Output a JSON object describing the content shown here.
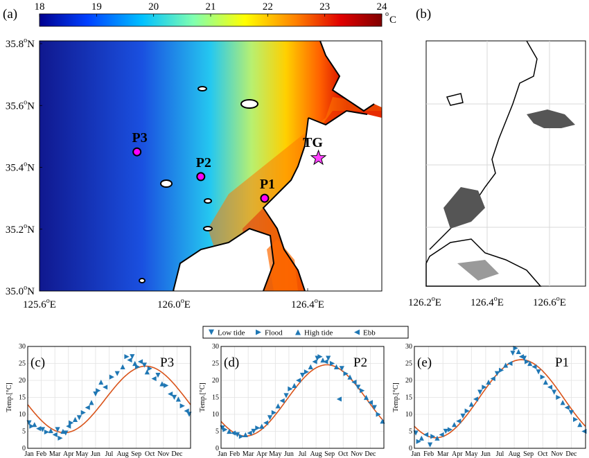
{
  "figure": {
    "panel_labels": {
      "a": "(a)",
      "b": "(b)",
      "c": "(c)",
      "d": "(d)",
      "e": "(e)"
    },
    "colorbar": {
      "ticks": [
        "18",
        "19",
        "20",
        "21",
        "22",
        "23",
        "24"
      ],
      "unit_o": "o",
      "unit_c": "C",
      "colors": [
        "#00008f",
        "#0040ff",
        "#00c0ff",
        "#80ffb0",
        "#ffff00",
        "#ff8000",
        "#e00000",
        "#800000"
      ]
    },
    "map_a": {
      "lat_ticks": [
        "35.8",
        "35.6",
        "35.4",
        "35.2",
        "35.0"
      ],
      "lat_suffix": "N",
      "lon_ticks": [
        "125.6",
        "126.0",
        "126.4"
      ],
      "lon_suffix": "E",
      "deg": "o",
      "points": [
        {
          "name": "P3",
          "lon": 125.89,
          "lat": 35.45
        },
        {
          "name": "P2",
          "lon": 126.08,
          "lat": 35.37
        },
        {
          "name": "P1",
          "lon": 126.27,
          "lat": 35.3
        },
        {
          "name": "TG",
          "lon": 126.43,
          "lat": 35.43
        }
      ]
    },
    "map_b": {
      "lon_ticks": [
        "126.2",
        "126.4",
        "126.6"
      ],
      "lon_suffix": "E",
      "deg": "o"
    },
    "legend": [
      "Low tide",
      "Flood",
      "High tide",
      "Ebb"
    ],
    "series_color": "#1f77b4",
    "fit_color": "#d95319"
  },
  "chart_data": [
    {
      "type": "scatter",
      "panel": "(c)",
      "station": "P3",
      "ylabel": "Temp.[°C]",
      "ylim": [
        0,
        30
      ],
      "yticks": [
        0,
        5,
        10,
        15,
        20,
        25,
        30
      ],
      "months": [
        "Jan",
        "Feb",
        "Mar",
        "Apr",
        "May",
        "Jun",
        "Jul",
        "Aug",
        "Sep",
        "Oct",
        "Nov",
        "Dec"
      ],
      "fit": {
        "mean": 14.4,
        "amp": 9.8,
        "peak_month": 8.7
      },
      "points": [
        [
          0.1,
          7.5,
          0
        ],
        [
          0.3,
          6.5,
          1
        ],
        [
          0.5,
          7.0,
          2
        ],
        [
          0.8,
          5.8,
          3
        ],
        [
          1.1,
          5.5,
          0
        ],
        [
          1.4,
          4.8,
          1
        ],
        [
          1.7,
          5.2,
          2
        ],
        [
          2.0,
          4.0,
          3
        ],
        [
          2.2,
          5.5,
          0
        ],
        [
          2.4,
          3.0,
          1
        ],
        [
          2.6,
          5.0,
          2
        ],
        [
          2.8,
          4.5,
          0
        ],
        [
          3.0,
          6.5,
          3
        ],
        [
          3.2,
          7.5,
          1
        ],
        [
          3.5,
          8.5,
          2
        ],
        [
          3.8,
          9.0,
          0
        ],
        [
          4.1,
          10.5,
          1
        ],
        [
          4.4,
          12.0,
          3
        ],
        [
          4.7,
          13.5,
          2
        ],
        [
          5.0,
          16.0,
          0
        ],
        [
          5.2,
          17.0,
          1
        ],
        [
          5.4,
          19.5,
          2
        ],
        [
          5.7,
          18.0,
          3
        ],
        [
          6.2,
          21.0,
          1
        ],
        [
          6.6,
          22.0,
          0
        ],
        [
          7.0,
          24.0,
          2
        ],
        [
          7.3,
          27.0,
          1
        ],
        [
          7.5,
          26.0,
          3
        ],
        [
          7.7,
          27.0,
          0
        ],
        [
          7.9,
          25.0,
          2
        ],
        [
          8.1,
          24.0,
          1
        ],
        [
          8.3,
          25.5,
          3
        ],
        [
          8.6,
          24.5,
          0
        ],
        [
          8.8,
          22.5,
          2
        ],
        [
          9.0,
          23.5,
          1
        ],
        [
          9.3,
          20.5,
          3
        ],
        [
          9.6,
          21.5,
          0
        ],
        [
          9.9,
          19.0,
          2
        ],
        [
          10.2,
          18.5,
          1
        ],
        [
          10.5,
          16.0,
          3
        ],
        [
          10.8,
          15.0,
          0
        ],
        [
          11.1,
          14.5,
          2
        ],
        [
          11.4,
          12.5,
          1
        ],
        [
          11.7,
          11.0,
          3
        ],
        [
          11.9,
          10.0,
          0
        ]
      ]
    },
    {
      "type": "scatter",
      "panel": "(d)",
      "station": "P2",
      "ylabel": "Temp.[°C]",
      "ylim": [
        0,
        30
      ],
      "yticks": [
        0,
        5,
        10,
        15,
        20,
        25,
        30
      ],
      "months": [
        "Jan",
        "Feb",
        "Mar",
        "Apr",
        "May",
        "Jun",
        "Jul",
        "Aug",
        "Sep",
        "Oct",
        "Nov",
        "Dec"
      ],
      "fit": {
        "mean": 14.1,
        "amp": 10.5,
        "peak_month": 7.8
      },
      "points": [
        [
          0.1,
          6.0,
          0
        ],
        [
          0.3,
          5.5,
          1
        ],
        [
          0.6,
          5.0,
          2
        ],
        [
          0.9,
          4.5,
          3
        ],
        [
          1.2,
          4.0,
          0
        ],
        [
          1.5,
          3.5,
          1
        ],
        [
          1.8,
          4.0,
          2
        ],
        [
          2.1,
          4.5,
          3
        ],
        [
          2.4,
          5.0,
          0
        ],
        [
          2.7,
          6.0,
          1
        ],
        [
          3.0,
          6.5,
          2
        ],
        [
          3.3,
          7.5,
          3
        ],
        [
          3.6,
          9.0,
          0
        ],
        [
          3.9,
          10.5,
          1
        ],
        [
          4.2,
          12.5,
          2
        ],
        [
          4.5,
          14.0,
          3
        ],
        [
          4.8,
          15.5,
          0
        ],
        [
          5.1,
          17.5,
          1
        ],
        [
          5.4,
          18.5,
          2
        ],
        [
          5.7,
          20.0,
          3
        ],
        [
          6.0,
          21.5,
          0
        ],
        [
          6.3,
          22.5,
          1
        ],
        [
          6.6,
          24.0,
          2
        ],
        [
          6.9,
          25.5,
          3
        ],
        [
          7.1,
          26.5,
          0
        ],
        [
          7.3,
          27.0,
          1
        ],
        [
          7.5,
          26.0,
          2
        ],
        [
          7.7,
          25.5,
          3
        ],
        [
          7.9,
          26.5,
          0
        ],
        [
          8.2,
          25.0,
          1
        ],
        [
          8.5,
          24.0,
          2
        ],
        [
          8.7,
          14.5,
          3
        ],
        [
          8.9,
          23.5,
          0
        ],
        [
          9.2,
          22.0,
          1
        ],
        [
          9.5,
          21.0,
          2
        ],
        [
          9.8,
          19.5,
          3
        ],
        [
          10.1,
          18.0,
          0
        ],
        [
          10.4,
          17.0,
          1
        ],
        [
          10.7,
          15.0,
          2
        ],
        [
          11.0,
          13.5,
          3
        ],
        [
          11.3,
          12.0,
          0
        ],
        [
          11.6,
          10.0,
          1
        ],
        [
          11.9,
          8.0,
          2
        ]
      ]
    },
    {
      "type": "scatter",
      "panel": "(e)",
      "station": "P1",
      "ylabel": "Temp.[°C]",
      "ylim": [
        0,
        30
      ],
      "yticks": [
        0,
        5,
        10,
        15,
        20,
        25,
        30
      ],
      "months": [
        "Jan",
        "Feb",
        "Mar",
        "Apr",
        "May",
        "Jun",
        "Jul",
        "Aug",
        "Sep",
        "Oct",
        "Nov",
        "Dec"
      ],
      "fit": {
        "mean": 14.6,
        "amp": 11.5,
        "peak_month": 7.5
      },
      "points": [
        [
          0.1,
          4.5,
          0
        ],
        [
          0.3,
          2.0,
          1
        ],
        [
          0.5,
          3.0,
          2
        ],
        [
          0.8,
          4.0,
          3
        ],
        [
          1.1,
          1.0,
          0
        ],
        [
          1.3,
          3.5,
          1
        ],
        [
          1.6,
          3.0,
          2
        ],
        [
          1.9,
          4.0,
          3
        ],
        [
          2.2,
          5.0,
          0
        ],
        [
          2.5,
          5.5,
          1
        ],
        [
          2.8,
          7.0,
          2
        ],
        [
          3.1,
          8.0,
          3
        ],
        [
          3.4,
          9.5,
          0
        ],
        [
          3.7,
          11.0,
          1
        ],
        [
          4.0,
          13.0,
          2
        ],
        [
          4.3,
          14.5,
          3
        ],
        [
          4.6,
          16.5,
          0
        ],
        [
          4.9,
          18.0,
          1
        ],
        [
          5.2,
          19.5,
          2
        ],
        [
          5.5,
          20.5,
          3
        ],
        [
          5.8,
          22.0,
          0
        ],
        [
          6.1,
          23.0,
          1
        ],
        [
          6.4,
          24.5,
          2
        ],
        [
          6.7,
          25.0,
          3
        ],
        [
          6.9,
          28.0,
          0
        ],
        [
          7.1,
          29.5,
          1
        ],
        [
          7.3,
          28.5,
          2
        ],
        [
          7.5,
          27.0,
          3
        ],
        [
          7.7,
          26.5,
          0
        ],
        [
          7.9,
          25.5,
          1
        ],
        [
          8.1,
          25.0,
          2
        ],
        [
          8.4,
          24.0,
          3
        ],
        [
          8.7,
          22.5,
          0
        ],
        [
          9.0,
          21.0,
          1
        ],
        [
          9.2,
          19.5,
          2
        ],
        [
          9.5,
          18.0,
          3
        ],
        [
          9.8,
          16.5,
          0
        ],
        [
          10.1,
          15.0,
          1
        ],
        [
          10.4,
          13.5,
          2
        ],
        [
          10.7,
          12.0,
          3
        ],
        [
          11.0,
          10.5,
          0
        ],
        [
          11.3,
          8.5,
          1
        ],
        [
          11.6,
          7.0,
          2
        ],
        [
          11.9,
          5.0,
          3
        ]
      ]
    }
  ]
}
